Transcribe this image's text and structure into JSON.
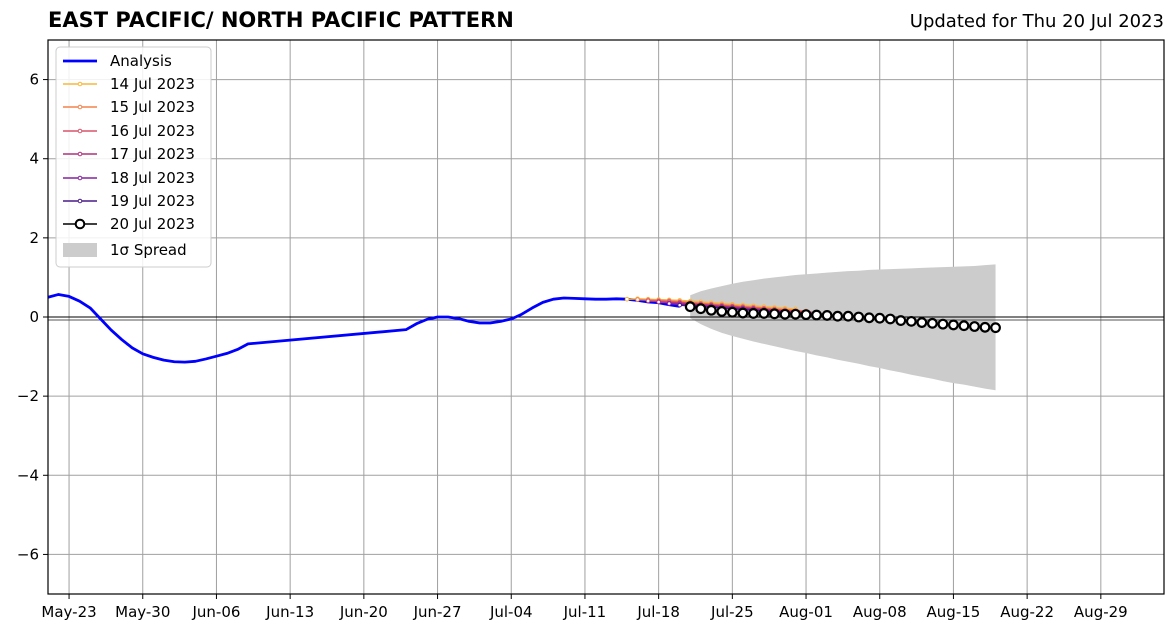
{
  "header": {
    "title": "EAST PACIFIC/ NORTH PACIFIC PATTERN",
    "updated": "Updated for Thu 20 Jul 2023"
  },
  "chart_data": {
    "type": "line",
    "title": "EAST PACIFIC/ NORTH PACIFIC PATTERN",
    "subtitle": "Updated for Thu 20 Jul 2023",
    "xlabel": "",
    "ylabel": "",
    "xlim": [
      "2023-05-21",
      "2023-09-04"
    ],
    "ylim": [
      -7,
      7
    ],
    "grid": true,
    "legend_position": "upper-left",
    "x_ticks": [
      {
        "date": "2023-05-23",
        "label": "May-23"
      },
      {
        "date": "2023-05-30",
        "label": "May-30"
      },
      {
        "date": "2023-06-06",
        "label": "Jun-06"
      },
      {
        "date": "2023-06-13",
        "label": "Jun-13"
      },
      {
        "date": "2023-06-20",
        "label": "Jun-20"
      },
      {
        "date": "2023-06-27",
        "label": "Jun-27"
      },
      {
        "date": "2023-07-04",
        "label": "Jul-04"
      },
      {
        "date": "2023-07-11",
        "label": "Jul-11"
      },
      {
        "date": "2023-07-18",
        "label": "Jul-18"
      },
      {
        "date": "2023-07-25",
        "label": "Jul-25"
      },
      {
        "date": "2023-08-01",
        "label": "Aug-01"
      },
      {
        "date": "2023-08-08",
        "label": "Aug-08"
      },
      {
        "date": "2023-08-15",
        "label": "Aug-15"
      },
      {
        "date": "2023-08-22",
        "label": "Aug-22"
      },
      {
        "date": "2023-08-29",
        "label": "Aug-29"
      }
    ],
    "y_ticks": [
      {
        "value": 6,
        "label": "6"
      },
      {
        "value": 4,
        "label": "4"
      },
      {
        "value": 2,
        "label": "2"
      },
      {
        "value": 0,
        "label": "0"
      },
      {
        "value": -2,
        "label": "−2"
      },
      {
        "value": -4,
        "label": "−4"
      },
      {
        "value": -6,
        "label": "−6"
      }
    ],
    "analysis": {
      "name": "Analysis",
      "color": "#0000ff",
      "points": [
        [
          "2023-05-21",
          0.5
        ],
        [
          "2023-05-22",
          0.57
        ],
        [
          "2023-05-23",
          0.52
        ],
        [
          "2023-05-24",
          0.4
        ],
        [
          "2023-05-25",
          0.23
        ],
        [
          "2023-05-26",
          -0.05
        ],
        [
          "2023-05-27",
          -0.33
        ],
        [
          "2023-05-28",
          -0.57
        ],
        [
          "2023-05-29",
          -0.78
        ],
        [
          "2023-05-30",
          -0.93
        ],
        [
          "2023-05-31",
          -1.02
        ],
        [
          "2023-06-01",
          -1.09
        ],
        [
          "2023-06-02",
          -1.13
        ],
        [
          "2023-06-03",
          -1.14
        ],
        [
          "2023-06-04",
          -1.12
        ],
        [
          "2023-06-05",
          -1.06
        ],
        [
          "2023-06-06",
          -0.99
        ],
        [
          "2023-06-07",
          -0.92
        ],
        [
          "2023-06-08",
          -0.82
        ],
        [
          "2023-06-09",
          -0.68
        ],
        [
          "2023-06-24",
          -0.32
        ],
        [
          "2023-06-25",
          -0.17
        ],
        [
          "2023-06-26",
          -0.06
        ],
        [
          "2023-06-27",
          0.0
        ],
        [
          "2023-06-28",
          0.0
        ],
        [
          "2023-06-29",
          -0.04
        ],
        [
          "2023-06-30",
          -0.11
        ],
        [
          "2023-07-01",
          -0.15
        ],
        [
          "2023-07-02",
          -0.15
        ],
        [
          "2023-07-03",
          -0.11
        ],
        [
          "2023-07-04",
          -0.05
        ],
        [
          "2023-07-05",
          0.07
        ],
        [
          "2023-07-06",
          0.23
        ],
        [
          "2023-07-07",
          0.37
        ],
        [
          "2023-07-08",
          0.45
        ],
        [
          "2023-07-09",
          0.48
        ],
        [
          "2023-07-10",
          0.47
        ],
        [
          "2023-07-11",
          0.46
        ],
        [
          "2023-07-12",
          0.45
        ],
        [
          "2023-07-13",
          0.45
        ],
        [
          "2023-07-14",
          0.46
        ],
        [
          "2023-07-15",
          0.45
        ],
        [
          "2023-07-16",
          0.42
        ],
        [
          "2023-07-17",
          0.38
        ],
        [
          "2023-07-18",
          0.36
        ],
        [
          "2023-07-19",
          0.31
        ],
        [
          "2023-07-20",
          0.27
        ]
      ]
    },
    "forecasts": [
      {
        "name": "14 Jul 2023",
        "color": "#f9b73a",
        "start": "2023-07-15",
        "values": [
          0.45,
          0.46,
          0.45,
          0.44,
          0.43,
          0.42,
          0.4,
          0.38,
          0.36,
          0.34,
          0.32,
          0.3,
          0.28,
          0.26,
          0.24,
          0.22,
          0.2
        ]
      },
      {
        "name": "15 Jul 2023",
        "color": "#f3824a",
        "start": "2023-07-16",
        "values": [
          0.44,
          0.43,
          0.42,
          0.41,
          0.39,
          0.37,
          0.35,
          0.33,
          0.31,
          0.29,
          0.27,
          0.25,
          0.23,
          0.21,
          0.19,
          0.17,
          0.15
        ]
      },
      {
        "name": "16 Jul 2023",
        "color": "#d9536a",
        "start": "2023-07-17",
        "values": [
          0.41,
          0.4,
          0.39,
          0.37,
          0.35,
          0.33,
          0.31,
          0.29,
          0.27,
          0.25,
          0.23,
          0.21,
          0.19,
          0.17,
          0.15,
          0.13,
          0.11
        ]
      },
      {
        "name": "17 Jul 2023",
        "color": "#b0307e",
        "start": "2023-07-18",
        "values": [
          0.38,
          0.36,
          0.35,
          0.33,
          0.31,
          0.29,
          0.27,
          0.25,
          0.23,
          0.21,
          0.19,
          0.17,
          0.15,
          0.13,
          0.11,
          0.09,
          0.07
        ]
      },
      {
        "name": "18 Jul 2023",
        "color": "#8622a0",
        "start": "2023-07-19",
        "values": [
          0.34,
          0.32,
          0.31,
          0.29,
          0.27,
          0.25,
          0.23,
          0.21,
          0.19,
          0.17,
          0.15,
          0.13,
          0.11,
          0.09,
          0.07,
          0.05,
          0.03
        ]
      },
      {
        "name": "19 Jul 2023",
        "color": "#4a1a8c",
        "start": "2023-07-20",
        "values": [
          0.3,
          0.28,
          0.26,
          0.25,
          0.23,
          0.21,
          0.19,
          0.17,
          0.15,
          0.13,
          0.11,
          0.09,
          0.07,
          0.05,
          0.03,
          0.01,
          -0.01
        ]
      }
    ],
    "current": {
      "name": "20 Jul 2023",
      "color": "#000000",
      "start": "2023-07-21",
      "values": [
        0.26,
        0.21,
        0.17,
        0.14,
        0.12,
        0.1,
        0.09,
        0.09,
        0.08,
        0.07,
        0.07,
        0.06,
        0.05,
        0.04,
        0.02,
        0.02,
        0.0,
        -0.02,
        -0.03,
        -0.05,
        -0.09,
        -0.11,
        -0.14,
        -0.16,
        -0.18,
        -0.2,
        -0.22,
        -0.24,
        -0.26,
        -0.27
      ]
    },
    "spread": {
      "name": "1σ Spread",
      "color": "#cccccc",
      "start": "2023-07-21",
      "upper": [
        0.55,
        0.65,
        0.72,
        0.78,
        0.84,
        0.89,
        0.93,
        0.97,
        1.0,
        1.03,
        1.06,
        1.08,
        1.1,
        1.12,
        1.14,
        1.16,
        1.17,
        1.19,
        1.2,
        1.21,
        1.22,
        1.23,
        1.24,
        1.25,
        1.26,
        1.27,
        1.28,
        1.29,
        1.31,
        1.33
      ],
      "lower": [
        -0.03,
        -0.18,
        -0.3,
        -0.4,
        -0.48,
        -0.55,
        -0.62,
        -0.68,
        -0.74,
        -0.8,
        -0.86,
        -0.91,
        -0.97,
        -1.02,
        -1.08,
        -1.13,
        -1.18,
        -1.24,
        -1.29,
        -1.35,
        -1.4,
        -1.46,
        -1.51,
        -1.56,
        -1.62,
        -1.67,
        -1.71,
        -1.76,
        -1.81,
        -1.85
      ]
    }
  }
}
